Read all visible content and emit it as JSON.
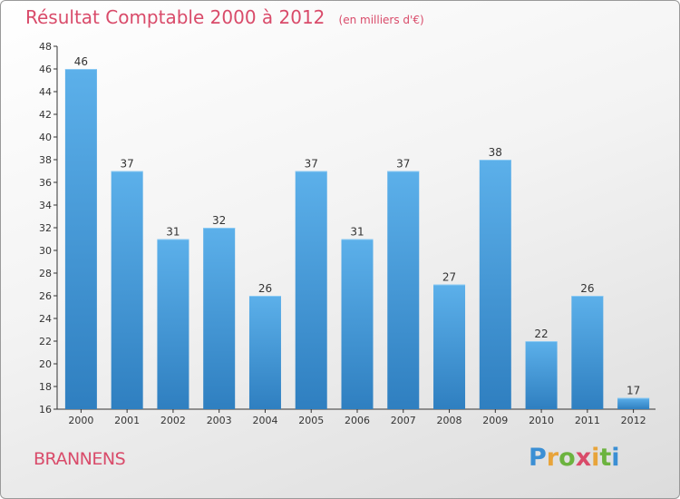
{
  "title": "Résultat Comptable 2000 à 2012",
  "unit_note": "(en milliers d'€)",
  "place_name": "BRANNENS",
  "brand": {
    "letters": [
      "P",
      "r",
      "o",
      "x",
      "i",
      "t",
      "i"
    ]
  },
  "colors": {
    "bar_light": "#5cb0ea",
    "bar_dark": "#2f7fc0",
    "title": "#d94b6a",
    "axis": "#333333"
  },
  "chart_data": {
    "type": "bar",
    "title": "Résultat Comptable 2000 à 2012",
    "xlabel": "",
    "ylabel": "",
    "categories": [
      "2000",
      "2001",
      "2002",
      "2003",
      "2004",
      "2005",
      "2006",
      "2007",
      "2008",
      "2009",
      "2010",
      "2011",
      "2012"
    ],
    "values": [
      46,
      37,
      31,
      32,
      26,
      37,
      31,
      37,
      27,
      38,
      22,
      26,
      17
    ],
    "ylim": [
      16,
      48
    ],
    "yticks": [
      16,
      18,
      20,
      22,
      24,
      26,
      28,
      30,
      32,
      34,
      36,
      38,
      40,
      42,
      44,
      46,
      48
    ],
    "grid": false
  }
}
